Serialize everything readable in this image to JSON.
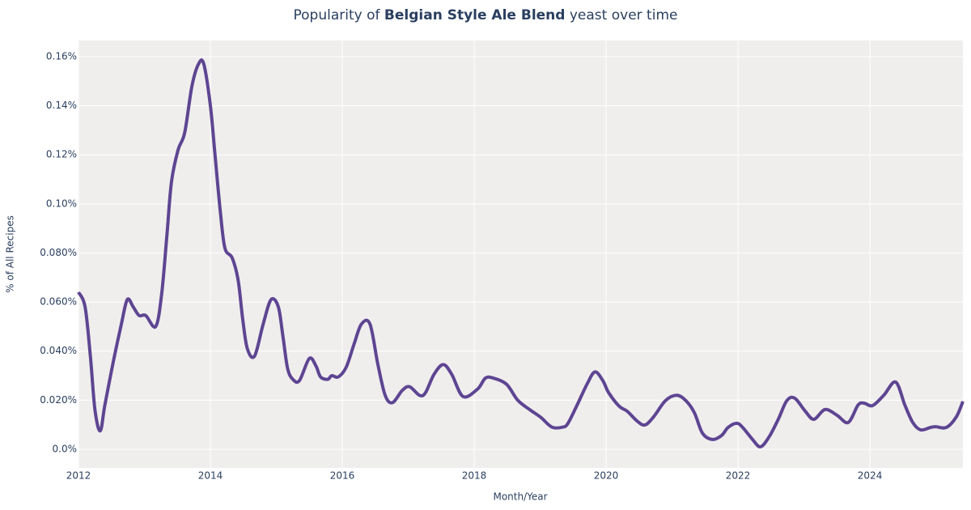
{
  "chart_data": {
    "type": "line",
    "title": [
      "Popularity of ",
      "Belgian Style Ale Blend",
      " yeast over time"
    ],
    "xlabel": "Month/Year",
    "ylabel": "% of All Recipes",
    "x": [
      2012.0,
      2012.1,
      2012.18,
      2012.25,
      2012.33,
      2012.4,
      2012.53,
      2012.65,
      2012.74,
      2012.83,
      2012.92,
      2013.02,
      2013.17,
      2013.26,
      2013.34,
      2013.41,
      2013.51,
      2013.61,
      2013.72,
      2013.82,
      2013.9,
      2014.0,
      2014.07,
      2014.15,
      2014.22,
      2014.33,
      2014.42,
      2014.49,
      2014.56,
      2014.67,
      2014.8,
      2014.92,
      2015.03,
      2015.1,
      2015.17,
      2015.25,
      2015.35,
      2015.5,
      2015.6,
      2015.67,
      2015.78,
      2015.84,
      2015.94,
      2016.06,
      2016.18,
      2016.29,
      2016.42,
      2016.54,
      2016.65,
      2016.76,
      2016.91,
      2017.02,
      2017.17,
      2017.26,
      2017.39,
      2017.53,
      2017.66,
      2017.83,
      2018.05,
      2018.17,
      2018.29,
      2018.49,
      2018.66,
      2018.85,
      2019.01,
      2019.18,
      2019.34,
      2019.42,
      2019.56,
      2019.71,
      2019.83,
      2019.95,
      2020.04,
      2020.2,
      2020.32,
      2020.47,
      2020.59,
      2020.72,
      2020.9,
      2021.07,
      2021.21,
      2021.34,
      2021.46,
      2021.61,
      2021.75,
      2021.85,
      2021.98,
      2022.07,
      2022.22,
      2022.34,
      2022.47,
      2022.61,
      2022.74,
      2022.86,
      2023.02,
      2023.15,
      2023.32,
      2023.5,
      2023.67,
      2023.82,
      2023.91,
      2024.04,
      2024.21,
      2024.39,
      2024.53,
      2024.65,
      2024.77,
      2024.92,
      2025.0,
      2025.16,
      2025.31,
      2025.41
    ],
    "series": [
      {
        "name": "Belgian Style Ale Blend",
        "color": "#5e4592",
        "values": [
          0.064,
          0.058,
          0.038,
          0.016,
          0.0075,
          0.018,
          0.036,
          0.051,
          0.061,
          0.058,
          0.0545,
          0.0545,
          0.05,
          0.063,
          0.087,
          0.109,
          0.122,
          0.129,
          0.148,
          0.157,
          0.157,
          0.14,
          0.12,
          0.097,
          0.082,
          0.078,
          0.069,
          0.053,
          0.041,
          0.038,
          0.051,
          0.061,
          0.058,
          0.046,
          0.033,
          0.0285,
          0.028,
          0.037,
          0.034,
          0.0295,
          0.0285,
          0.03,
          0.0295,
          0.0335,
          0.043,
          0.051,
          0.051,
          0.0345,
          0.022,
          0.019,
          0.024,
          0.0255,
          0.022,
          0.023,
          0.0305,
          0.0345,
          0.0305,
          0.0215,
          0.0245,
          0.029,
          0.029,
          0.0265,
          0.02,
          0.016,
          0.013,
          0.009,
          0.009,
          0.0105,
          0.018,
          0.0265,
          0.0315,
          0.028,
          0.023,
          0.0175,
          0.0155,
          0.0115,
          0.0099,
          0.0132,
          0.0198,
          0.022,
          0.0198,
          0.0148,
          0.0066,
          0.004,
          0.0056,
          0.0089,
          0.0106,
          0.0089,
          0.004,
          0.001,
          0.005,
          0.0122,
          0.0198,
          0.0208,
          0.0155,
          0.0122,
          0.0162,
          0.0139,
          0.0109,
          0.018,
          0.0188,
          0.0178,
          0.022,
          0.0274,
          0.018,
          0.0109,
          0.0079,
          0.0089,
          0.0092,
          0.0089,
          0.0132,
          0.0195
        ]
      }
    ],
    "xlim": [
      2012,
      2025.41
    ],
    "xticks": [
      2012,
      2014,
      2016,
      2018,
      2020,
      2022,
      2024
    ],
    "ylim": [
      -0.0076,
      0.1666
    ],
    "yticks": [
      {
        "value": 0,
        "label": "0.0%"
      },
      {
        "value": 0.02,
        "label": "0.020%"
      },
      {
        "value": 0.04,
        "label": "0.040%"
      },
      {
        "value": 0.06,
        "label": "0.060%"
      },
      {
        "value": 0.08,
        "label": "0.080%"
      },
      {
        "value": 0.1,
        "label": "0.10%"
      },
      {
        "value": 0.12,
        "label": "0.12%"
      },
      {
        "value": 0.14,
        "label": "0.14%"
      },
      {
        "value": 0.16,
        "label": "0.16%"
      }
    ],
    "grid": true
  }
}
